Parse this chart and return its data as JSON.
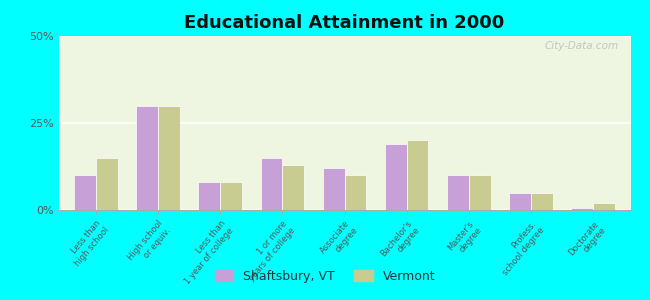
{
  "title": "Educational Attainment in 2000",
  "categories": [
    "Less than\nhigh school",
    "High school\nor equiv.",
    "Less than\n1 year of college",
    "1 or more\nyears of college",
    "Associate\ndegree",
    "Bachelor's\ndegree",
    "Master's\ndegree",
    "Profess.\nschool degree",
    "Doctorate\ndegree"
  ],
  "shaftsbury": [
    10,
    30,
    8,
    15,
    12,
    19,
    10,
    5,
    0.5
  ],
  "vermont": [
    15,
    30,
    8,
    13,
    10,
    20,
    10,
    5,
    2
  ],
  "shaftsbury_color": "#c8a0d8",
  "vermont_color": "#c8cc90",
  "background_color": "#00ffff",
  "plot_bg": "#eef5e0",
  "ylim": [
    0,
    50
  ],
  "yticks": [
    0,
    25,
    50
  ],
  "ytick_labels": [
    "0%",
    "25%",
    "50%"
  ],
  "legend_shaftsbury": "Shaftsbury, VT",
  "legend_vermont": "Vermont",
  "bar_width": 0.35
}
